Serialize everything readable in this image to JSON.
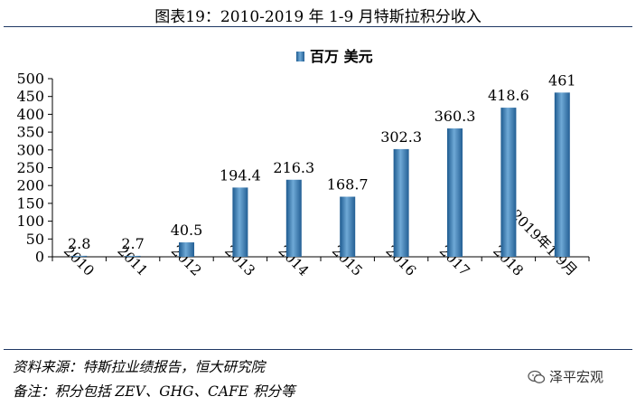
{
  "title": "图表19：2010-2019 年 1-9 月特斯拉积分收入",
  "chart_data": {
    "type": "bar",
    "categories": [
      "2010",
      "2011",
      "2012",
      "2013",
      "2014",
      "2015",
      "2016",
      "2017",
      "2018",
      "2019年1-9月"
    ],
    "series": [
      {
        "name": "百万 美元",
        "values": [
          2.8,
          2.7,
          40.5,
          194.4,
          216.3,
          168.7,
          302.3,
          360.3,
          418.6,
          461
        ]
      }
    ],
    "value_labels": [
      "2.8",
      "2.7",
      "40.5",
      "194.4",
      "216.3",
      "168.7",
      "302.3",
      "360.3",
      "418.6",
      "461"
    ],
    "ylim": [
      0,
      500
    ],
    "yticks": [
      0,
      50,
      100,
      150,
      200,
      250,
      300,
      350,
      400,
      450,
      500
    ],
    "grid": false,
    "legend": "top-center",
    "color": "#3c7fb5"
  },
  "notes": {
    "source": "资料来源：特斯拉业绩报告，恒大研究院",
    "remark": "备注：积分包括 ZEV、GHG、CAFE 积分等"
  },
  "brand": {
    "label": "泽平宏观",
    "icon": "wechat-icon"
  }
}
